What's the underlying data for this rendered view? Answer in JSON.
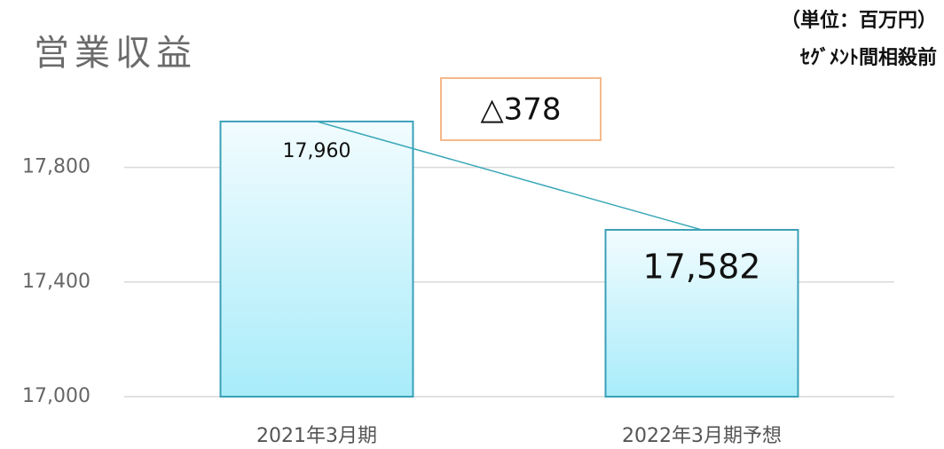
{
  "chart_data": {
    "type": "bar",
    "title": "営業収益",
    "subtitle": [
      "（単位：百万円）",
      "ｾｸﾞﾒﾝﾄ間相殺前"
    ],
    "annotation": "△378",
    "categories": [
      "2021年3月期",
      "2022年3月期予想"
    ],
    "values": [
      17960,
      17582
    ],
    "value_labels": [
      "17,960",
      "17,582"
    ],
    "color": "#a8ecfa",
    "connector_color": "#3aa8b8",
    "ylim": [
      17000,
      18000
    ],
    "yticks": [
      {
        "value": 17000,
        "label": "17,000"
      },
      {
        "value": 17400,
        "label": "17,400"
      },
      {
        "value": 17800,
        "label": "17,800"
      }
    ],
    "grid": true
  }
}
